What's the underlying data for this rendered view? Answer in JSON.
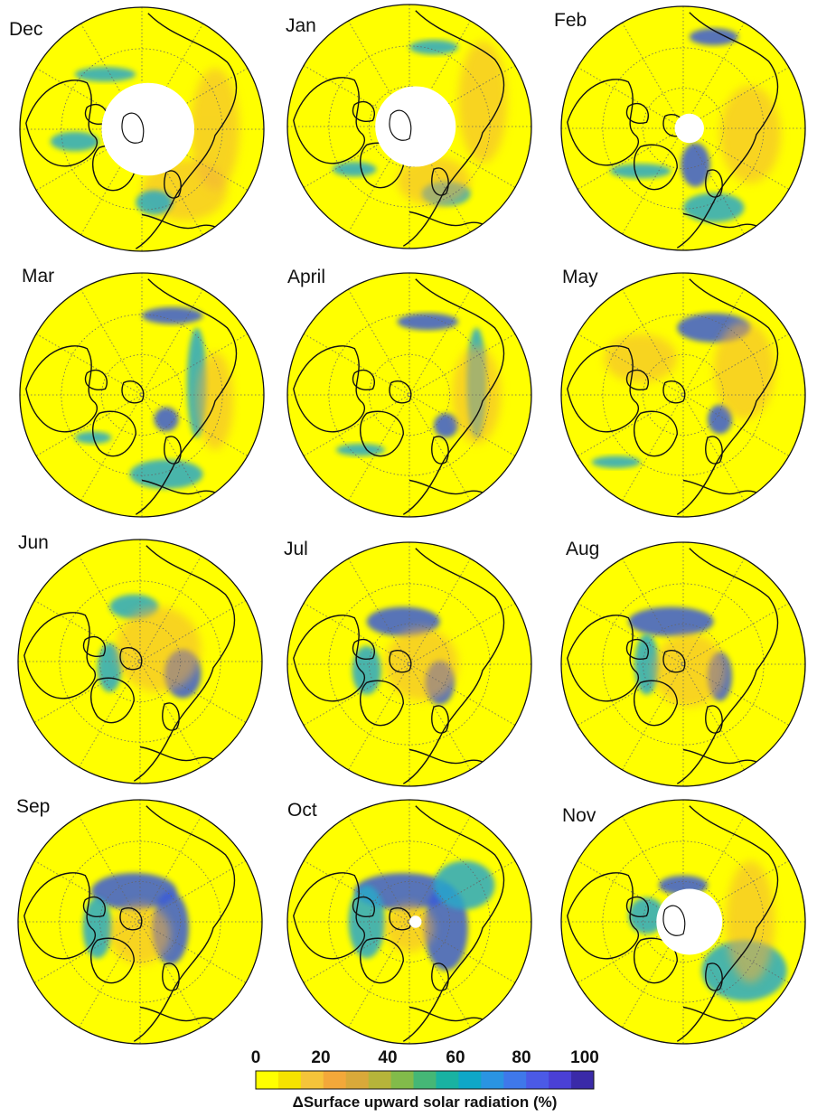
{
  "panels": [
    {
      "label": "Dec",
      "hole": 0.38
    },
    {
      "label": "Jan",
      "hole": 0.33
    },
    {
      "label": "Feb",
      "hole": 0.12
    },
    {
      "label": "Mar",
      "hole": 0
    },
    {
      "label": "April",
      "hole": 0
    },
    {
      "label": "May",
      "hole": 0
    },
    {
      "label": "Jun",
      "hole": 0
    },
    {
      "label": "Jul",
      "hole": 0
    },
    {
      "label": "Aug",
      "hole": 0
    },
    {
      "label": "Sep",
      "hole": 0
    },
    {
      "label": "Oct",
      "hole": 0.05
    },
    {
      "label": "Nov",
      "hole": 0.27
    }
  ],
  "colorbar": {
    "ticks": [
      "0",
      "20",
      "40",
      "60",
      "80",
      "100"
    ],
    "range": [
      0,
      100
    ],
    "title": "ΔSurface upward solar radiation (%)",
    "colors": [
      "#ffff00",
      "#f6e300",
      "#f5c43a",
      "#f3a83a",
      "#d9a93a",
      "#b6b43a",
      "#82bb4a",
      "#45b776",
      "#19b2a2",
      "#0fa7c7",
      "#2a94e2",
      "#3f78ea",
      "#4b5ae6",
      "#4a40d6",
      "#3a2aa8"
    ]
  },
  "colors": {
    "background": "#ffff00",
    "ice_blue": "#3a5bd8",
    "cyan": "#2aa8c8",
    "orange": "#f2b13a",
    "coast": "#111111",
    "grid": "#666666"
  }
}
